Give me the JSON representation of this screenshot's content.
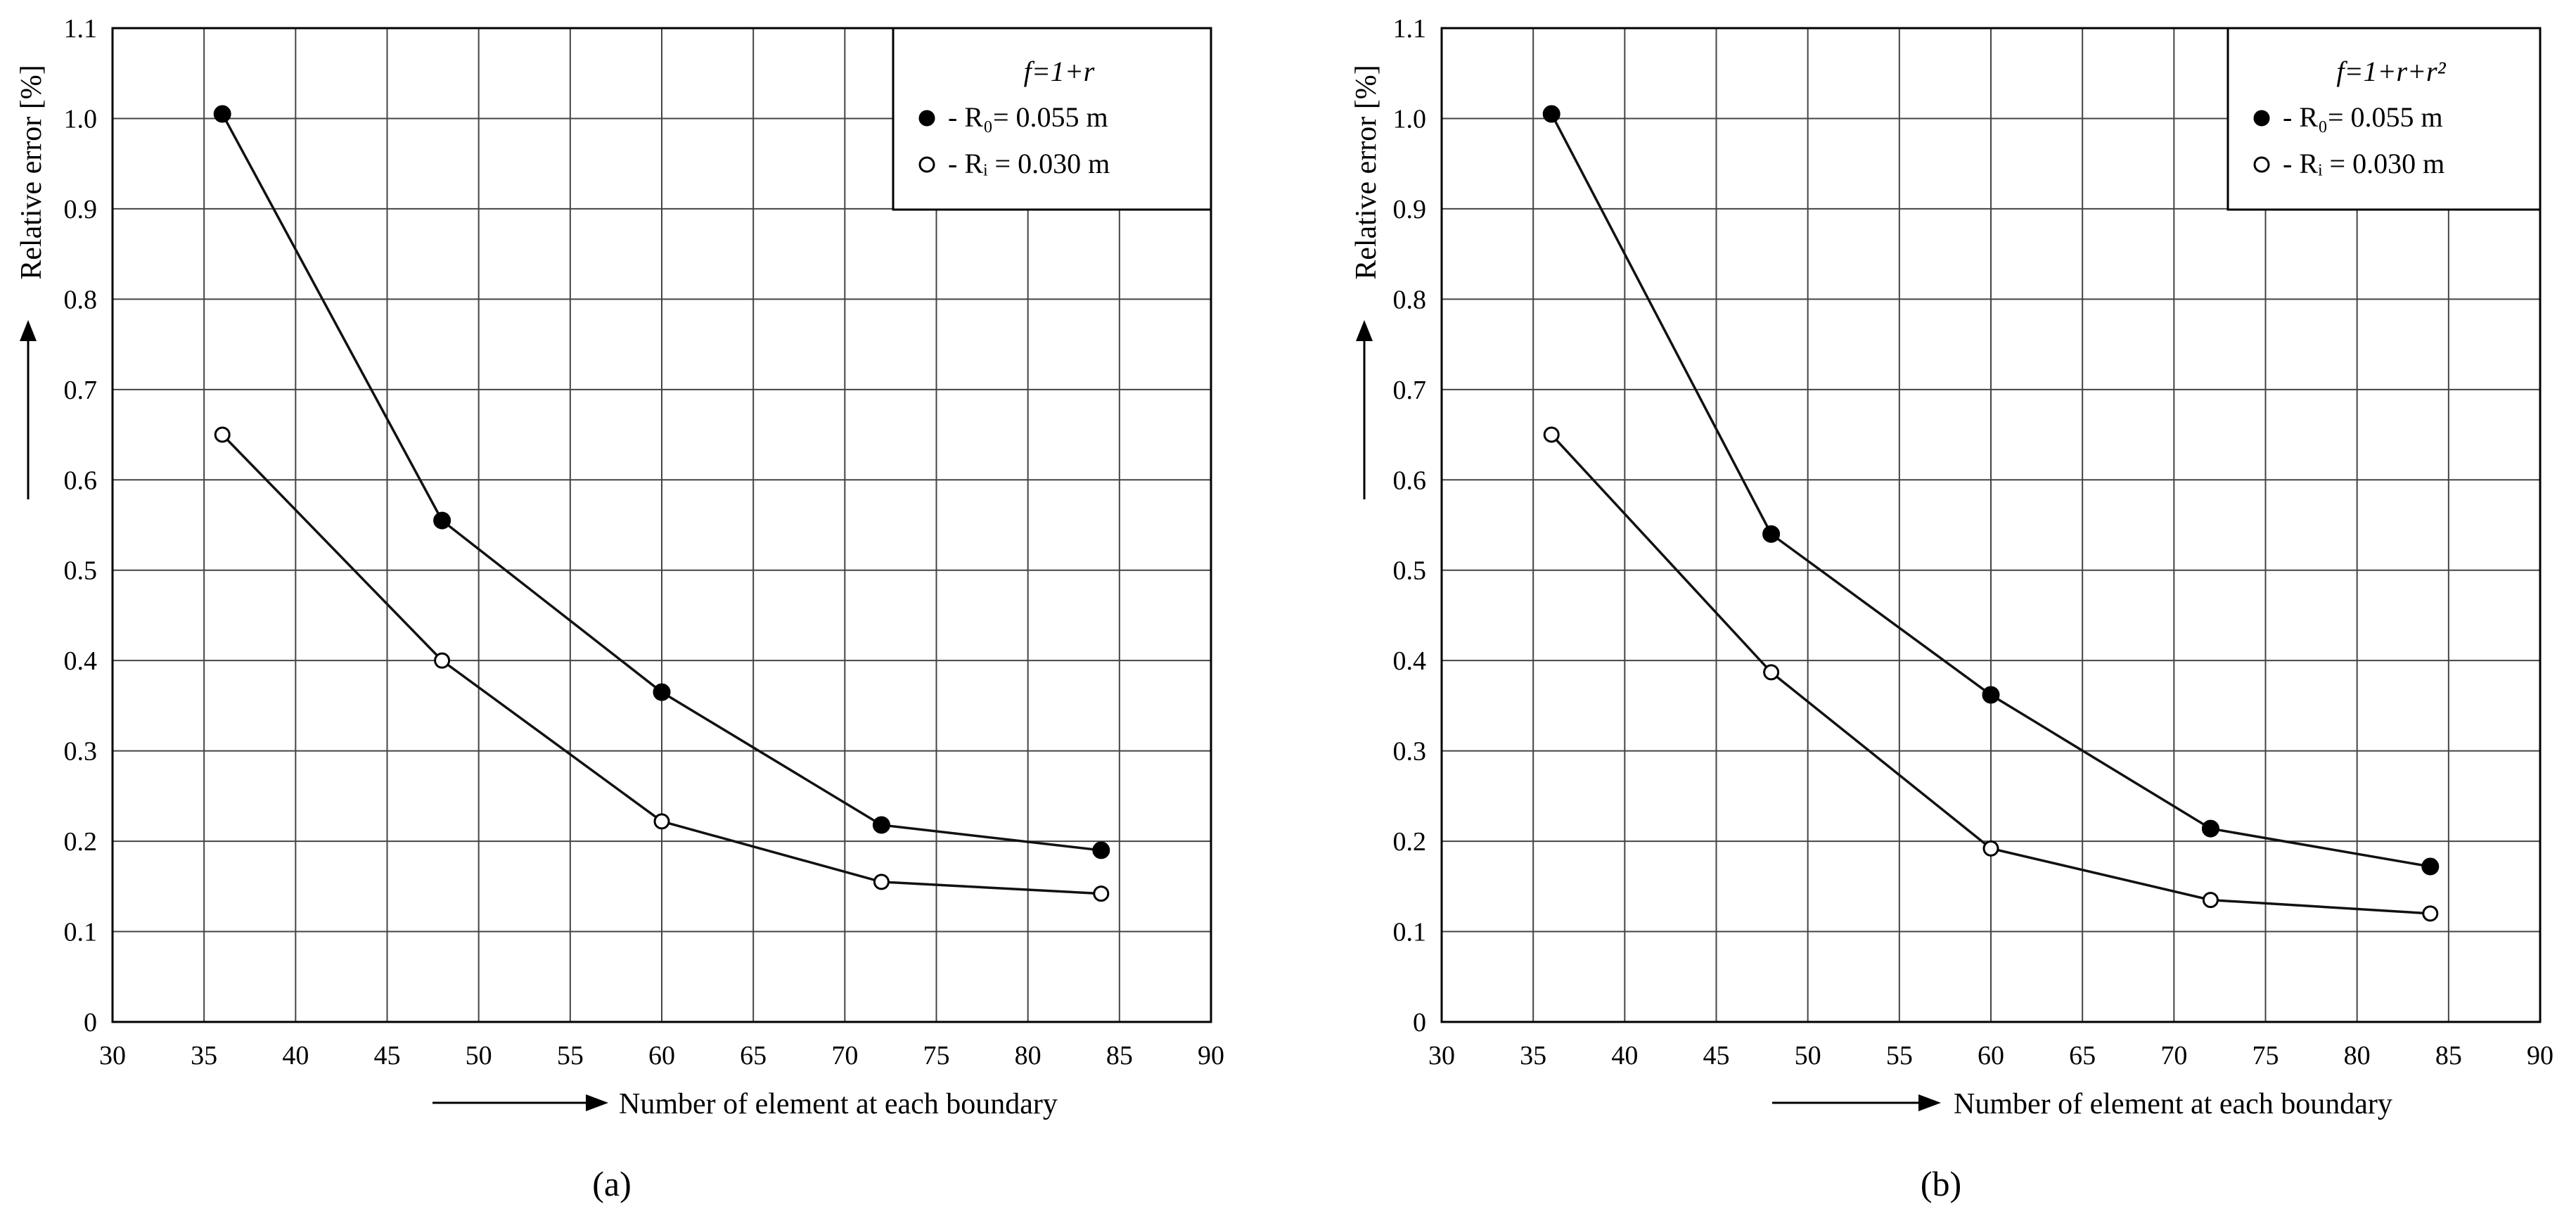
{
  "chart_data": [
    {
      "type": "line",
      "panel_label": "(a)",
      "formula_title": "f=1+r",
      "xlabel": "Number of element at each boundary",
      "ylabel": "Relative error [%]",
      "xlim": [
        30,
        90
      ],
      "ylim": [
        0,
        1.1
      ],
      "x_ticks": [
        "30",
        "35",
        "40",
        "45",
        "50",
        "55",
        "60",
        "65",
        "70",
        "75",
        "80",
        "85",
        "90"
      ],
      "y_ticks": [
        "0",
        "0.1",
        "0.2",
        "0.3",
        "0.4",
        "0.5",
        "0.6",
        "0.7",
        "0.8",
        "0.9",
        "1.0",
        "1.1"
      ],
      "grid": true,
      "legend_position": "top-right",
      "series": [
        {
          "name": "- R₀= 0.055 m",
          "marker": "filled-circle",
          "x": [
            36,
            48,
            60,
            72,
            84
          ],
          "y": [
            1.005,
            0.555,
            0.365,
            0.218,
            0.19
          ]
        },
        {
          "name": "- Rᵢ = 0.030 m",
          "marker": "open-circle",
          "x": [
            36,
            48,
            60,
            72,
            84
          ],
          "y": [
            0.65,
            0.4,
            0.222,
            0.155,
            0.142
          ]
        }
      ]
    },
    {
      "type": "line",
      "panel_label": "(b)",
      "formula_title": "f=1+r+r²",
      "xlabel": "Number of element at each boundary",
      "ylabel": "Relative error [%]",
      "xlim": [
        30,
        90
      ],
      "ylim": [
        0,
        1.1
      ],
      "x_ticks": [
        "30",
        "35",
        "40",
        "45",
        "50",
        "55",
        "60",
        "65",
        "70",
        "75",
        "80",
        "85",
        "90"
      ],
      "y_ticks": [
        "0",
        "0.1",
        "0.2",
        "0.3",
        "0.4",
        "0.5",
        "0.6",
        "0.7",
        "0.8",
        "0.9",
        "1.0",
        "1.1"
      ],
      "grid": true,
      "legend_position": "top-right",
      "series": [
        {
          "name": "- R₀= 0.055 m",
          "marker": "filled-circle",
          "x": [
            36,
            48,
            60,
            72,
            84
          ],
          "y": [
            1.005,
            0.54,
            0.362,
            0.214,
            0.172
          ]
        },
        {
          "name": "- Rᵢ = 0.030 m",
          "marker": "open-circle",
          "x": [
            36,
            48,
            60,
            72,
            84
          ],
          "y": [
            0.65,
            0.387,
            0.192,
            0.135,
            0.12
          ]
        }
      ]
    }
  ]
}
